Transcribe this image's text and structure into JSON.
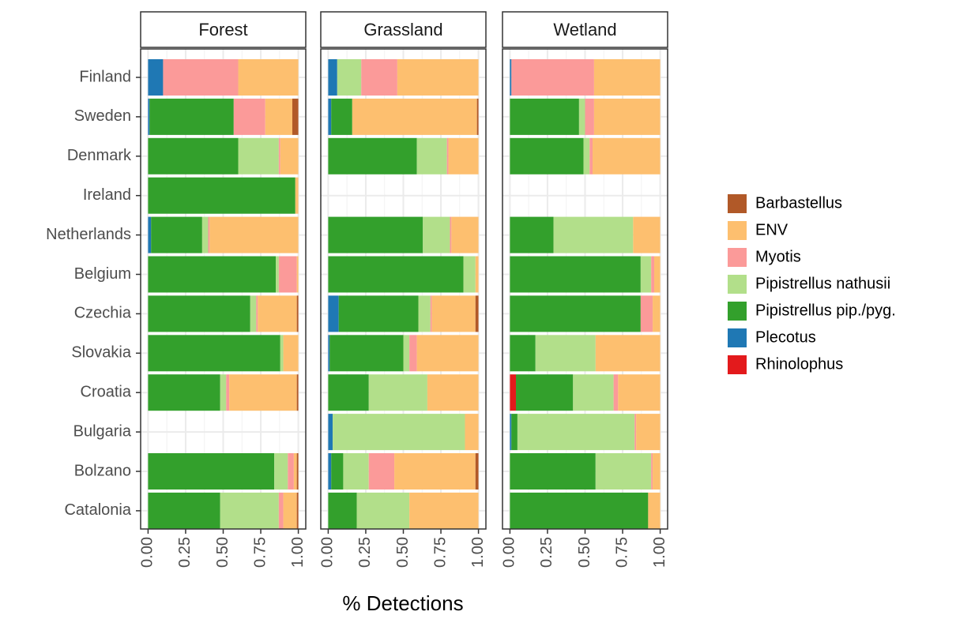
{
  "chart_data": {
    "type": "bar",
    "orientation": "horizontal",
    "stacked": true,
    "facets": [
      "Forest",
      "Grassland",
      "Wetland"
    ],
    "categories": [
      "Finland",
      "Sweden",
      "Denmark",
      "Ireland",
      "Netherlands",
      "Belgium",
      "Czechia",
      "Slovakia",
      "Croatia",
      "Bulgaria",
      "Bolzano",
      "Catalonia"
    ],
    "xlabel": "% Detections",
    "xlim": [
      0,
      1
    ],
    "xticks": [
      {
        "value": 0,
        "label": "0.00"
      },
      {
        "value": 0.25,
        "label": "0.25"
      },
      {
        "value": 0.5,
        "label": "0.50"
      },
      {
        "value": 0.75,
        "label": "0.75"
      },
      {
        "value": 1,
        "label": "1.00"
      }
    ],
    "grid": true,
    "legend": "right",
    "series": [
      {
        "name": "Barbastellus",
        "color": "#b15928",
        "values": [
          [
            0,
            0.04,
            0,
            0,
            0,
            0,
            0.01,
            0,
            0.01,
            null,
            0.01,
            0.01
          ],
          [
            0,
            0.01,
            0,
            null,
            0,
            0,
            0.02,
            0,
            0,
            0,
            0.02,
            0
          ],
          [
            0,
            0,
            0,
            null,
            0,
            0,
            0,
            0,
            0,
            0,
            0,
            0
          ]
        ]
      },
      {
        "name": "ENV",
        "color": "#fdbf6f",
        "values": [
          [
            0.4,
            0.18,
            0.12,
            0.02,
            0.59,
            0.01,
            0.26,
            0.1,
            0.45,
            null,
            0.02,
            0.09
          ],
          [
            0.54,
            0.83,
            0.2,
            null,
            0.18,
            0.02,
            0.29,
            0.41,
            0.34,
            0.09,
            0.54,
            0.46
          ],
          [
            0.44,
            0.44,
            0.45,
            null,
            0.18,
            0.04,
            0.05,
            0.43,
            0.28,
            0.16,
            0.05,
            0.08
          ]
        ]
      },
      {
        "name": "Myotis",
        "color": "#fb9a99",
        "values": [
          [
            0.5,
            0.21,
            0.01,
            0,
            0.01,
            0.12,
            0.01,
            0,
            0.02,
            null,
            0.04,
            0.03
          ],
          [
            0.24,
            0,
            0.01,
            null,
            0.01,
            0,
            0.01,
            0.05,
            0,
            0,
            0.17,
            0
          ],
          [
            0.55,
            0.06,
            0.02,
            null,
            0,
            0.02,
            0.08,
            0,
            0.03,
            0.01,
            0.01,
            0
          ]
        ]
      },
      {
        "name": "Pipistrellus nathusii",
        "color": "#b2df8a",
        "values": [
          [
            0,
            0,
            0.27,
            0,
            0.04,
            0.02,
            0.04,
            0.02,
            0.04,
            null,
            0.09,
            0.39
          ],
          [
            0.16,
            0,
            0.2,
            null,
            0.18,
            0.08,
            0.08,
            0.04,
            0.39,
            0.88,
            0.17,
            0.35
          ],
          [
            0,
            0.04,
            0.04,
            null,
            0.53,
            0.07,
            0,
            0.4,
            0.27,
            0.78,
            0.37,
            0
          ]
        ]
      },
      {
        "name": "Pipistrellus pip./pyg.",
        "color": "#33a02c",
        "values": [
          [
            0,
            0.56,
            0.6,
            0.98,
            0.34,
            0.85,
            0.68,
            0.88,
            0.48,
            null,
            0.84,
            0.48
          ],
          [
            0,
            0.14,
            0.59,
            null,
            0.63,
            0.9,
            0.53,
            0.49,
            0.27,
            0,
            0.08,
            0.19
          ],
          [
            0,
            0.46,
            0.49,
            null,
            0.29,
            0.87,
            0.87,
            0.17,
            0.38,
            0.04,
            0.57,
            0.92
          ]
        ]
      },
      {
        "name": "Plecotus",
        "color": "#1f78b4",
        "values": [
          [
            0.1,
            0.01,
            0,
            0,
            0.02,
            0,
            0,
            0,
            0,
            null,
            0,
            0
          ],
          [
            0.06,
            0.02,
            0,
            null,
            0,
            0,
            0.07,
            0.01,
            0,
            0.03,
            0.02,
            0
          ],
          [
            0.01,
            0,
            0,
            null,
            0,
            0,
            0,
            0,
            0,
            0.01,
            0,
            0
          ]
        ]
      },
      {
        "name": "Rhinolophus",
        "color": "#e31a1c",
        "values": [
          [
            0,
            0,
            0,
            0,
            0,
            0,
            0,
            0,
            0,
            null,
            0,
            0
          ],
          [
            0,
            0,
            0,
            null,
            0,
            0,
            0,
            0,
            0,
            0,
            0,
            0
          ],
          [
            0,
            0,
            0,
            null,
            0,
            0,
            0,
            0,
            0.04,
            0,
            0,
            0
          ]
        ]
      }
    ]
  }
}
